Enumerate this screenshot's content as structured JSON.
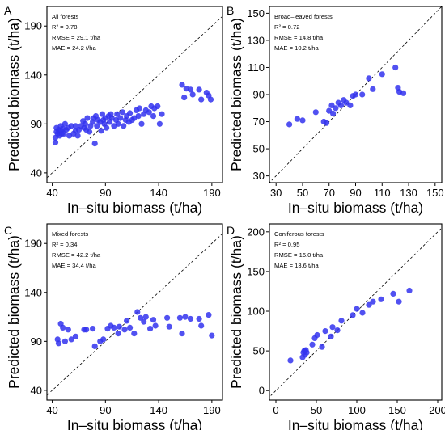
{
  "chart_data": [
    {
      "type": "scatter",
      "panel": "A",
      "title": "All forests",
      "stats": [
        "R² = 0.78",
        "RMSE = 29.1 t/ha",
        "MAE = 24.2 t/ha"
      ],
      "xlabel": "In–situ biomass (t/ha)",
      "ylabel": "Predicted biomass (t/ha)",
      "xlim": [
        35,
        200
      ],
      "ylim": [
        30,
        210
      ],
      "xticks": [
        40,
        90,
        140,
        190
      ],
      "yticks": [
        40,
        90,
        140,
        190
      ],
      "reference_line": "1:1 dashed",
      "marker_color": "#3333ee",
      "points": [
        [
          43,
          71
        ],
        [
          43,
          76
        ],
        [
          44,
          82
        ],
        [
          44,
          86
        ],
        [
          45,
          80
        ],
        [
          46,
          84
        ],
        [
          47,
          78
        ],
        [
          48,
          88
        ],
        [
          48,
          83
        ],
        [
          49,
          80
        ],
        [
          50,
          85
        ],
        [
          51,
          80
        ],
        [
          52,
          90
        ],
        [
          53,
          84
        ],
        [
          55,
          86
        ],
        [
          56,
          78
        ],
        [
          58,
          88
        ],
        [
          60,
          80
        ],
        [
          62,
          88
        ],
        [
          62,
          83
        ],
        [
          64,
          78
        ],
        [
          65,
          84
        ],
        [
          67,
          88
        ],
        [
          69,
          93
        ],
        [
          70,
          86
        ],
        [
          71,
          90
        ],
        [
          72,
          84
        ],
        [
          73,
          96
        ],
        [
          75,
          82
        ],
        [
          76,
          88
        ],
        [
          78,
          92
        ],
        [
          79,
          96
        ],
        [
          80,
          70
        ],
        [
          81,
          98
        ],
        [
          82,
          88
        ],
        [
          83,
          94
        ],
        [
          85,
          92
        ],
        [
          86,
          83
        ],
        [
          87,
          100
        ],
        [
          88,
          94
        ],
        [
          89,
          90
        ],
        [
          90,
          96
        ],
        [
          91,
          86
        ],
        [
          93,
          98
        ],
        [
          94,
          92
        ],
        [
          95,
          100
        ],
        [
          96,
          96
        ],
        [
          98,
          88
        ],
        [
          100,
          94
        ],
        [
          101,
          100
        ],
        [
          102,
          90
        ],
        [
          104,
          96
        ],
        [
          106,
          102
        ],
        [
          107,
          88
        ],
        [
          109,
          94
        ],
        [
          110,
          98
        ],
        [
          112,
          92
        ],
        [
          113,
          101
        ],
        [
          115,
          94
        ],
        [
          117,
          96
        ],
        [
          119,
          104
        ],
        [
          121,
          98
        ],
        [
          122,
          106
        ],
        [
          124,
          90
        ],
        [
          126,
          100
        ],
        [
          128,
          104
        ],
        [
          131,
          102
        ],
        [
          133,
          108
        ],
        [
          135,
          98
        ],
        [
          136,
          106
        ],
        [
          139,
          108
        ],
        [
          141,
          90
        ],
        [
          143,
          100
        ],
        [
          162,
          130
        ],
        [
          164,
          117
        ],
        [
          166,
          126
        ],
        [
          170,
          125
        ],
        [
          172,
          120
        ],
        [
          178,
          125
        ],
        [
          180,
          115
        ],
        [
          185,
          122
        ],
        [
          187,
          119
        ],
        [
          189,
          115
        ]
      ]
    },
    {
      "type": "scatter",
      "panel": "B",
      "title": "Broad–leaved forests",
      "stats": [
        "R² = 0.72",
        "RMSE = 14.8 t/ha",
        "MAE = 10.2 t/ha"
      ],
      "xlabel": "In–situ biomass (t/ha)",
      "ylabel": "Predicted biomass (t/ha)",
      "xlim": [
        25,
        155
      ],
      "ylim": [
        25,
        155
      ],
      "xticks": [
        30,
        50,
        70,
        90,
        110,
        130,
        150
      ],
      "yticks": [
        30,
        50,
        70,
        90,
        110,
        130,
        150
      ],
      "reference_line": "1:1 dashed",
      "marker_color": "#3333ee",
      "points": [
        [
          40,
          68
        ],
        [
          46,
          72
        ],
        [
          50,
          71
        ],
        [
          60,
          77
        ],
        [
          66,
          70
        ],
        [
          68,
          69
        ],
        [
          70,
          78
        ],
        [
          72,
          82
        ],
        [
          73,
          76
        ],
        [
          75,
          80
        ],
        [
          77,
          84
        ],
        [
          79,
          82
        ],
        [
          81,
          86
        ],
        [
          83,
          84
        ],
        [
          86,
          82
        ],
        [
          88,
          89
        ],
        [
          90,
          90
        ],
        [
          95,
          90
        ],
        [
          100,
          102
        ],
        [
          103,
          94
        ],
        [
          110,
          105
        ],
        [
          120,
          110
        ],
        [
          122,
          95
        ],
        [
          123,
          92
        ],
        [
          126,
          91
        ]
      ]
    },
    {
      "type": "scatter",
      "panel": "C",
      "title": "Mixed forests",
      "stats": [
        "R² = 0.34",
        "RMSE = 42.2 t/ha",
        "MAE = 34.4 t/ha"
      ],
      "xlabel": "In–situ biomass (t/ha)",
      "ylabel": "Predicted biomass (t/ha)",
      "xlim": [
        35,
        200
      ],
      "ylim": [
        30,
        210
      ],
      "xticks": [
        40,
        90,
        140,
        190
      ],
      "yticks": [
        40,
        90,
        140,
        190
      ],
      "reference_line": "1:1 dashed",
      "marker_color": "#3333ee",
      "points": [
        [
          45,
          92
        ],
        [
          46,
          88
        ],
        [
          48,
          108
        ],
        [
          50,
          104
        ],
        [
          52,
          90
        ],
        [
          55,
          102
        ],
        [
          58,
          92
        ],
        [
          62,
          95
        ],
        [
          70,
          102
        ],
        [
          72,
          102
        ],
        [
          78,
          103
        ],
        [
          80,
          85
        ],
        [
          85,
          90
        ],
        [
          88,
          92
        ],
        [
          92,
          103
        ],
        [
          95,
          106
        ],
        [
          98,
          104
        ],
        [
          102,
          98
        ],
        [
          103,
          105
        ],
        [
          108,
          102
        ],
        [
          110,
          111
        ],
        [
          113,
          104
        ],
        [
          117,
          98
        ],
        [
          120,
          120
        ],
        [
          123,
          114
        ],
        [
          126,
          110
        ],
        [
          128,
          115
        ],
        [
          132,
          103
        ],
        [
          135,
          112
        ],
        [
          137,
          106
        ],
        [
          148,
          114
        ],
        [
          150,
          105
        ],
        [
          160,
          114
        ],
        [
          162,
          98
        ],
        [
          165,
          115
        ],
        [
          170,
          113
        ],
        [
          178,
          113
        ],
        [
          180,
          106
        ],
        [
          187,
          117
        ],
        [
          190,
          96
        ]
      ]
    },
    {
      "type": "scatter",
      "panel": "D",
      "title": "Coniferous forests",
      "stats": [
        "R² = 0.95",
        "RMSE = 16.0 t/ha",
        "MAE = 13.6 t/ha"
      ],
      "xlabel": "In–situ biomass (t/ha)",
      "ylabel": "Predicted biomass (t/ha)",
      "xlim": [
        -8,
        205
      ],
      "ylim": [
        -12,
        210
      ],
      "xticks": [
        0,
        50,
        100,
        150,
        200
      ],
      "yticks": [
        0,
        50,
        100,
        150,
        200
      ],
      "reference_line": "1:1 dashed",
      "marker_color": "#3333ee",
      "points": [
        [
          18,
          38
        ],
        [
          33,
          42
        ],
        [
          34,
          48
        ],
        [
          35,
          50
        ],
        [
          36,
          45
        ],
        [
          37,
          51
        ],
        [
          38,
          48
        ],
        [
          45,
          58
        ],
        [
          48,
          66
        ],
        [
          51,
          70
        ],
        [
          57,
          55
        ],
        [
          61,
          75
        ],
        [
          68,
          68
        ],
        [
          70,
          80
        ],
        [
          76,
          76
        ],
        [
          81,
          88
        ],
        [
          95,
          95
        ],
        [
          100,
          103
        ],
        [
          107,
          98
        ],
        [
          115,
          108
        ],
        [
          120,
          112
        ],
        [
          130,
          115
        ],
        [
          145,
          122
        ],
        [
          152,
          112
        ],
        [
          165,
          126
        ]
      ]
    }
  ]
}
